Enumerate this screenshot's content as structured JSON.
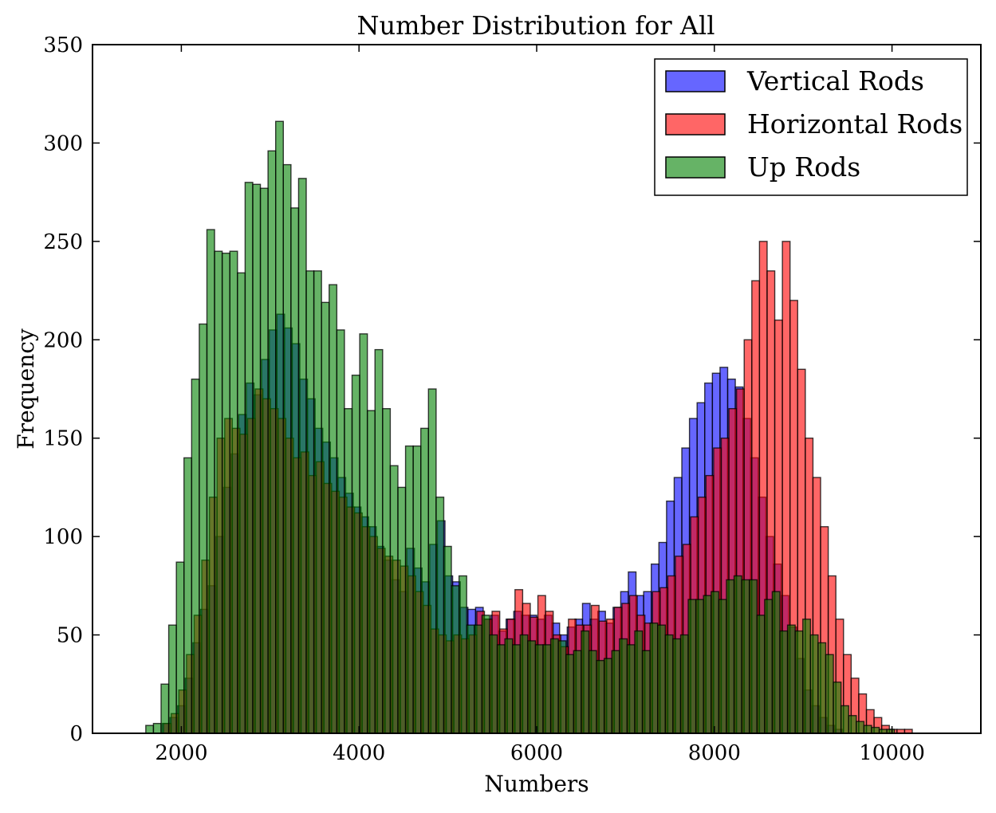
{
  "chart_data": {
    "type": "bar",
    "title": "Number Distribution for All",
    "xlabel": "Numbers",
    "ylabel": "Frequency",
    "xlim": [
      1000,
      11000
    ],
    "ylim": [
      0,
      350
    ],
    "x_ticks": [
      2000,
      4000,
      6000,
      8000,
      10000
    ],
    "y_ticks": [
      0,
      50,
      100,
      150,
      200,
      250,
      300,
      350
    ],
    "grid": false,
    "legend_position": "top-right",
    "bin_width": 86,
    "series": [
      {
        "name": "Vertical Rods",
        "color": "#0000ff",
        "x_start": 1700,
        "values": [
          0,
          5,
          8,
          14,
          28,
          46,
          63,
          75,
          100,
          125,
          142,
          162,
          178,
          172,
          190,
          205,
          213,
          206,
          198,
          180,
          170,
          155,
          148,
          140,
          130,
          122,
          115,
          110,
          105,
          95,
          88,
          78,
          72,
          94,
          84,
          77,
          96,
          108,
          80,
          77,
          64,
          63,
          64,
          58,
          60,
          52,
          58,
          62,
          60,
          60,
          58,
          60,
          56,
          50,
          54,
          58,
          66,
          58,
          62,
          56,
          64,
          72,
          82,
          70,
          72,
          86,
          97,
          118,
          130,
          145,
          160,
          168,
          178,
          183,
          186,
          180,
          176,
          160,
          140,
          120,
          100,
          86,
          70,
          54,
          38,
          22,
          14,
          8,
          4,
          2,
          0
        ]
      },
      {
        "name": "Horizontal Rods",
        "color": "#ff0000",
        "x_start": 1800,
        "values": [
          5,
          10,
          22,
          40,
          60,
          88,
          120,
          150,
          160,
          155,
          152,
          160,
          175,
          170,
          165,
          160,
          150,
          140,
          143,
          131,
          138,
          127,
          123,
          120,
          115,
          112,
          105,
          100,
          94,
          90,
          88,
          85,
          80,
          72,
          65,
          53,
          50,
          47,
          50,
          48,
          50,
          62,
          58,
          62,
          53,
          58,
          73,
          66,
          59,
          70,
          62,
          50,
          44,
          58,
          55,
          55,
          65,
          57,
          58,
          64,
          66,
          70,
          60,
          56,
          72,
          74,
          80,
          90,
          96,
          110,
          120,
          131,
          145,
          150,
          165,
          175,
          200,
          230,
          250,
          235,
          210,
          250,
          220,
          185,
          150,
          130,
          105,
          80,
          58,
          40,
          28,
          20,
          12,
          8,
          4,
          2,
          2,
          2
        ]
      },
      {
        "name": "Up Rods",
        "color": "#008000",
        "x_start": 1600,
        "values": [
          4,
          5,
          25,
          55,
          87,
          140,
          180,
          208,
          256,
          245,
          244,
          245,
          234,
          280,
          279,
          277,
          296,
          311,
          289,
          267,
          282,
          235,
          235,
          219,
          228,
          205,
          165,
          182,
          203,
          164,
          195,
          165,
          136,
          125,
          146,
          146,
          155,
          175,
          120,
          95,
          75,
          80,
          55,
          55,
          60,
          50,
          45,
          48,
          45,
          50,
          47,
          45,
          45,
          48,
          47,
          40,
          42,
          52,
          42,
          37,
          38,
          42,
          48,
          45,
          52,
          42,
          56,
          55,
          50,
          48,
          50,
          68,
          68,
          70,
          72,
          68,
          78,
          80,
          78,
          78,
          60,
          68,
          72,
          52,
          55,
          52,
          58,
          50,
          46,
          40,
          26,
          14,
          9,
          6,
          4,
          3,
          2,
          2
        ]
      }
    ]
  }
}
